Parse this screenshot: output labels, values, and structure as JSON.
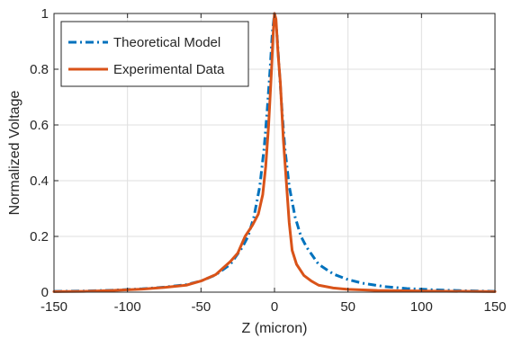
{
  "chart_data": {
    "type": "line",
    "title": "",
    "xlabel": "Z (micron)",
    "ylabel": "Normalized Voltage",
    "xlim": [
      -150,
      150
    ],
    "ylim": [
      0,
      1
    ],
    "x_ticks": [
      -150,
      -100,
      -50,
      0,
      50,
      100,
      150
    ],
    "y_ticks": [
      0,
      0.2,
      0.4,
      0.6,
      0.8,
      1
    ],
    "x_tick_labels": [
      "-150",
      "-100",
      "-50",
      "0",
      "50",
      "100",
      "150"
    ],
    "y_tick_labels": [
      "0",
      "0.2",
      "0.4",
      "0.6",
      "0.8",
      "1"
    ],
    "grid": true,
    "legend_position": "top-left",
    "series": [
      {
        "name": "Theoretical Model",
        "color": "#0072BD",
        "style": "dash-dot",
        "points": [
          [
            -150,
            0.003
          ],
          [
            -130,
            0.004
          ],
          [
            -110,
            0.007
          ],
          [
            -90,
            0.012
          ],
          [
            -75,
            0.018
          ],
          [
            -60,
            0.027
          ],
          [
            -50,
            0.04
          ],
          [
            -40,
            0.062
          ],
          [
            -30,
            0.1
          ],
          [
            -22,
            0.16
          ],
          [
            -18,
            0.2
          ],
          [
            -14,
            0.27
          ],
          [
            -10,
            0.38
          ],
          [
            -7,
            0.52
          ],
          [
            -5,
            0.65
          ],
          [
            -3,
            0.8
          ],
          [
            -1.5,
            0.93
          ],
          [
            0,
            1.0
          ],
          [
            1.5,
            0.94
          ],
          [
            3,
            0.82
          ],
          [
            5,
            0.66
          ],
          [
            7,
            0.52
          ],
          [
            10,
            0.38
          ],
          [
            14,
            0.27
          ],
          [
            18,
            0.2
          ],
          [
            22,
            0.16
          ],
          [
            30,
            0.1
          ],
          [
            40,
            0.065
          ],
          [
            50,
            0.045
          ],
          [
            60,
            0.032
          ],
          [
            75,
            0.02
          ],
          [
            90,
            0.013
          ],
          [
            110,
            0.008
          ],
          [
            130,
            0.005
          ],
          [
            150,
            0.003
          ]
        ]
      },
      {
        "name": "Experimental Data",
        "color": "#D95319",
        "style": "solid",
        "points": [
          [
            -150,
            0.002
          ],
          [
            -130,
            0.003
          ],
          [
            -110,
            0.006
          ],
          [
            -90,
            0.011
          ],
          [
            -75,
            0.017
          ],
          [
            -60,
            0.025
          ],
          [
            -50,
            0.04
          ],
          [
            -40,
            0.063
          ],
          [
            -30,
            0.11
          ],
          [
            -25,
            0.14
          ],
          [
            -20,
            0.2
          ],
          [
            -15,
            0.24
          ],
          [
            -11,
            0.28
          ],
          [
            -8,
            0.35
          ],
          [
            -6,
            0.45
          ],
          [
            -4,
            0.6
          ],
          [
            -2,
            0.8
          ],
          [
            -1,
            0.92
          ],
          [
            0,
            1.0
          ],
          [
            1,
            0.98
          ],
          [
            2.5,
            0.85
          ],
          [
            4,
            0.75
          ],
          [
            6,
            0.55
          ],
          [
            8,
            0.4
          ],
          [
            10,
            0.25
          ],
          [
            12,
            0.15
          ],
          [
            15,
            0.1
          ],
          [
            20,
            0.06
          ],
          [
            25,
            0.04
          ],
          [
            30,
            0.025
          ],
          [
            40,
            0.015
          ],
          [
            50,
            0.01
          ],
          [
            70,
            0.006
          ],
          [
            100,
            0.004
          ],
          [
            150,
            0.002
          ]
        ]
      }
    ]
  }
}
